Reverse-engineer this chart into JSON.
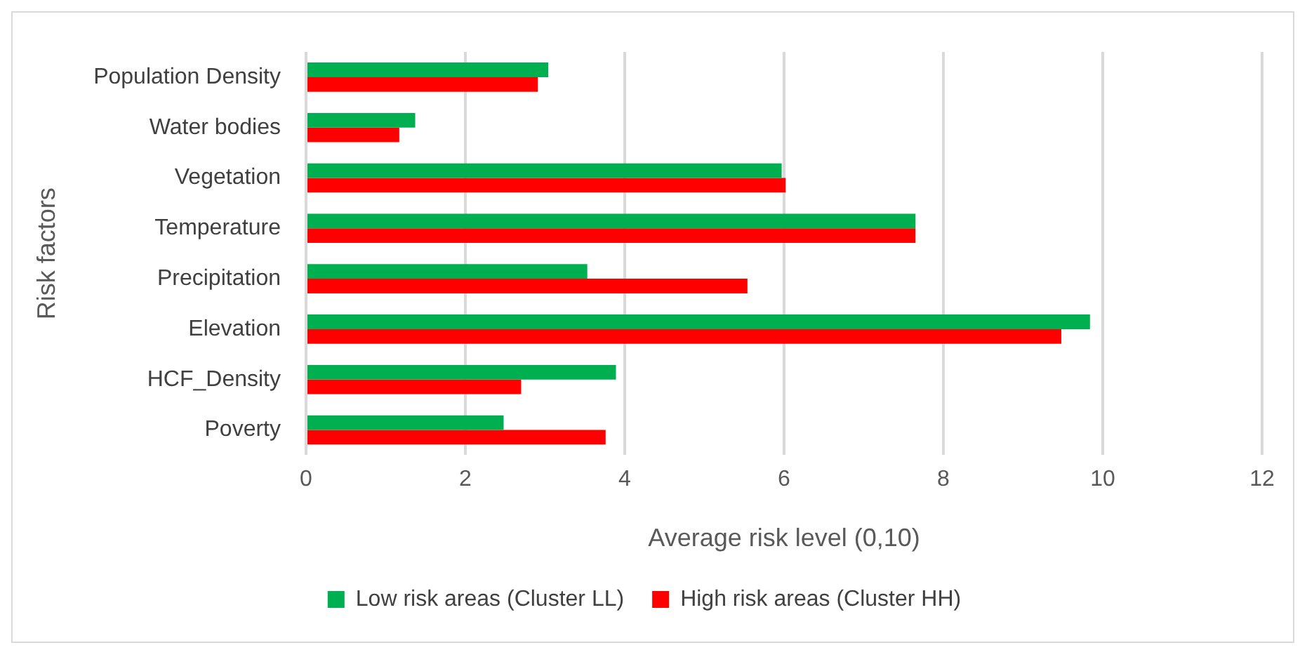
{
  "chart_data": {
    "type": "bar",
    "orientation": "horizontal",
    "xlabel": "Average risk level (0,10)",
    "ylabel": "Risk factors",
    "categories": [
      "Population Density",
      "Water bodies",
      "Vegetation",
      "Temperature",
      "Precipitation",
      "Elevation",
      "HCF_Density",
      "Poverty"
    ],
    "series": [
      {
        "name": "Low risk areas (Cluster LL)",
        "color": "#00b050",
        "values": [
          3.04,
          1.37,
          5.97,
          7.65,
          3.53,
          9.84,
          3.89,
          2.48
        ]
      },
      {
        "name": "High risk areas (Cluster HH)",
        "color": "#ff0000",
        "values": [
          2.91,
          1.17,
          6.02,
          7.65,
          5.54,
          9.48,
          2.7,
          3.76
        ]
      }
    ],
    "xlim": [
      0,
      12
    ],
    "xticks": [
      0,
      2,
      4,
      6,
      8,
      10,
      12
    ],
    "grid": "x",
    "legend": "bottom"
  }
}
